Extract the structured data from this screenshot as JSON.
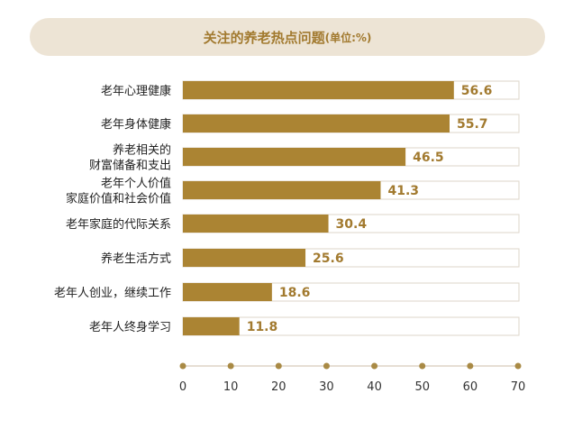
{
  "chart_data": {
    "type": "bar",
    "orientation": "horizontal",
    "title": "关注的养老热点问题",
    "unit": "(单位:%)",
    "categories": [
      [
        "老年心理健康"
      ],
      [
        "老年身体健康"
      ],
      [
        "养老相关的",
        "财富储备和支出"
      ],
      [
        "老年个人价值",
        "家庭价值和社会价值"
      ],
      [
        "老年家庭的代际关系"
      ],
      [
        "养老生活方式"
      ],
      [
        "老年人创业，继续工作"
      ],
      [
        "老年人终身学习"
      ]
    ],
    "values": [
      56.6,
      55.7,
      46.5,
      41.3,
      30.4,
      25.6,
      18.6,
      11.8
    ],
    "value_labels": [
      "56.6",
      "55.7",
      "46.5",
      "41.3",
      "30.4",
      "25.6",
      "18.6",
      "11.8"
    ],
    "xlim": [
      0,
      70
    ],
    "xticks": [
      "0",
      "10",
      "20",
      "30",
      "40",
      "50",
      "60",
      "70"
    ],
    "colors": {
      "bar": "#ab8433",
      "label": "#a27a2f",
      "axis_dot": "#a98a45",
      "axis_line": "#ddd3c6",
      "track_border": "#ddd5ca"
    }
  }
}
